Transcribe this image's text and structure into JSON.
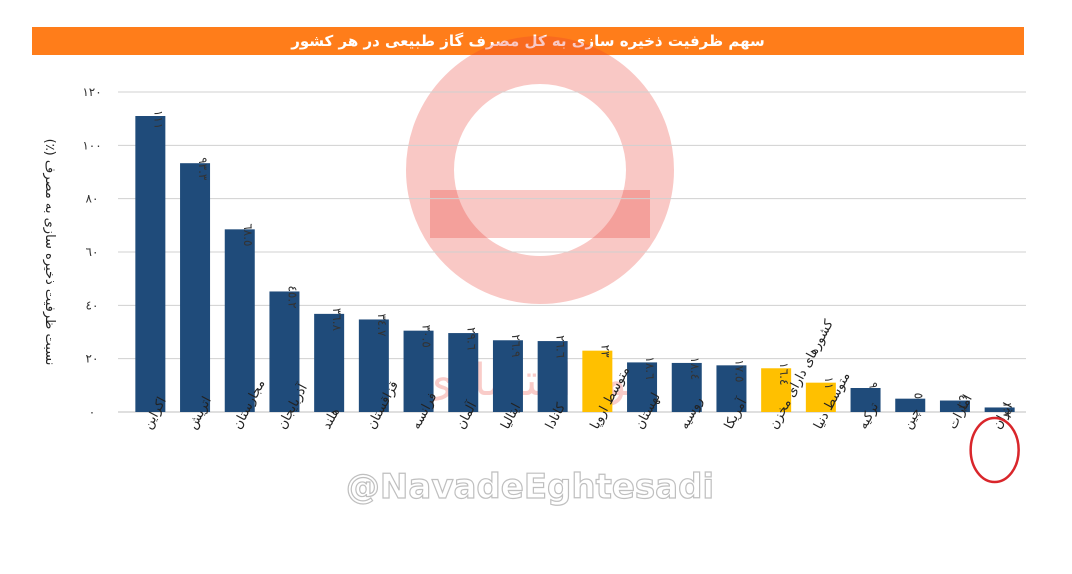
{
  "title": "سهم ظرفیت ذخیره سازی به کل مصرف گاز طبیعی در هر کشور",
  "watermark": {
    "handle": "@NavadeEghtesadi",
    "logo_text": "نود اقتصادی"
  },
  "colors": {
    "title_bg": "#ff7d1a",
    "country_bar": "#1f4b7a",
    "average_bar": "#ffc000",
    "highlight_circle": "#d9262b",
    "watermark": "#e8392e"
  },
  "chart_data": {
    "type": "bar",
    "title": "سهم ظرفیت ذخیره سازی به کل مصرف گاز طبیعی در هر کشور",
    "xlabel": "",
    "ylabel": "نسبت ظرفیت ذخیره سازی به مصرف (٪)",
    "ylim": [
      0,
      120
    ],
    "yticks": [
      "٠",
      "٢٠",
      "٤٠",
      "٦٠",
      "٨٠",
      "١٠٠",
      "١٢٠"
    ],
    "ytick_values": [
      0,
      20,
      40,
      60,
      80,
      100,
      120
    ],
    "grid": true,
    "categories": [
      "اکراین",
      "اتریش",
      "مجارستان",
      "آذربایجان",
      "هلند",
      "قزاقستان",
      "فرانسه",
      "آلمان",
      "ایتالیا",
      "کانادا",
      "متوسط اروپا",
      "لهستان",
      "روسیه",
      "آمریکا",
      "کشورهای دارای مخزن",
      "متوسط دنیا",
      "ترکیه",
      "چین",
      "امارات",
      "ایران"
    ],
    "values": [
      111,
      93.3,
      68.5,
      45.2,
      36.8,
      34.7,
      30.5,
      29.6,
      26.9,
      26.6,
      23,
      18.6,
      18.4,
      17.5,
      16.4,
      11,
      9,
      5,
      4.3,
      1.7
    ],
    "value_labels": [
      "١١١",
      "٩٣.٣",
      "٦٨.٥",
      "٤٥.٢",
      "٣٦.٨",
      "٣٤.٧",
      "٣٠.٥",
      "٢٩.٦",
      "٢٦.٩",
      "٢٦.٦",
      "٢٣",
      "١٨.٦",
      "١٨.٤",
      "١٧.٥",
      "١٦.٤",
      "١١",
      "٩",
      "٥",
      "٤.٣",
      "١.٧"
    ],
    "is_average": [
      false,
      false,
      false,
      false,
      false,
      false,
      false,
      false,
      false,
      false,
      true,
      false,
      false,
      false,
      true,
      true,
      false,
      false,
      false,
      false
    ],
    "highlighted_category": "ایران"
  }
}
